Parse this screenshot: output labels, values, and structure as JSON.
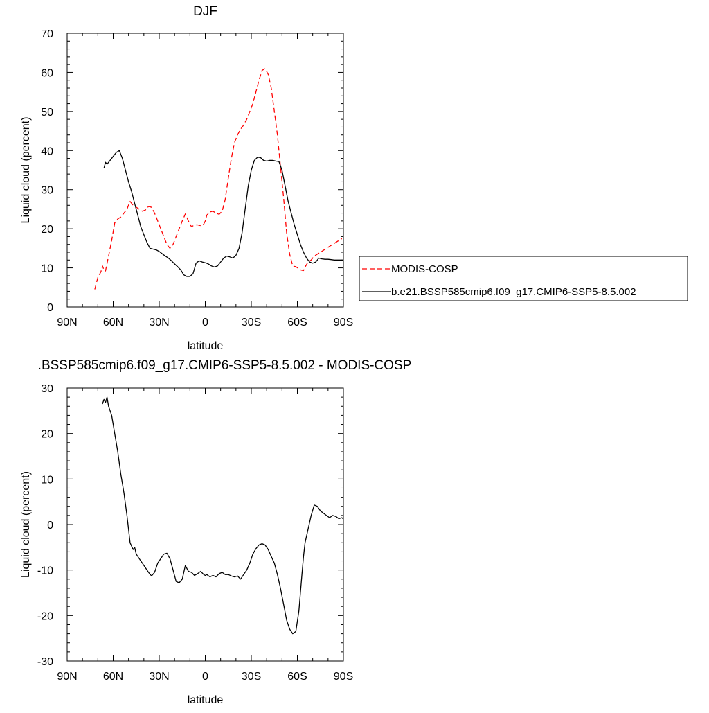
{
  "chart_data": [
    {
      "type": "line",
      "title": "DJF",
      "xlabel": "latitude",
      "ylabel": "Liquid cloud (percent)",
      "xlim": [
        -90,
        90
      ],
      "ylim": [
        0,
        70
      ],
      "x_ticks": [
        -90,
        -60,
        -30,
        0,
        30,
        60,
        90
      ],
      "x_tick_labels": [
        "90N",
        "60N",
        "30N",
        "0",
        "30S",
        "60S",
        "90S"
      ],
      "y_ticks": [
        0,
        10,
        20,
        30,
        40,
        50,
        60,
        70
      ],
      "y_tick_labels": [
        "0",
        "10",
        "20",
        "30",
        "40",
        "50",
        "60",
        "70"
      ],
      "legend_position": "right",
      "series": [
        {
          "name": "MODIS-COSP",
          "color": "#ff0000",
          "dash": "dashed",
          "x": [
            -72,
            -70,
            -68,
            -67,
            -66,
            -65,
            -63,
            -61,
            -59,
            -57,
            -55,
            -53,
            -51,
            -49,
            -47,
            -45,
            -43,
            -41,
            -39,
            -37,
            -35,
            -33,
            -31,
            -29,
            -27,
            -25,
            -23,
            -21,
            -19,
            -17,
            -15,
            -13,
            -11,
            -9,
            -7,
            -5,
            -3,
            -1,
            0,
            1,
            3,
            5,
            7,
            9,
            11,
            13,
            15,
            17,
            19,
            21,
            23,
            25,
            27,
            29,
            31,
            33,
            35,
            37,
            39,
            41,
            43,
            45,
            47,
            49,
            51,
            53,
            55,
            57,
            59,
            61,
            62,
            63,
            64,
            65,
            67,
            69,
            71,
            73,
            75,
            77,
            79,
            81,
            83,
            85,
            87,
            89
          ],
          "y": [
            4.5,
            7.5,
            9,
            10.5,
            9.5,
            9.2,
            13,
            17,
            21.5,
            22.5,
            23,
            24,
            25,
            27,
            26,
            25.5,
            25,
            24.5,
            24.8,
            25.7,
            25.5,
            24,
            22,
            20,
            18,
            16,
            15,
            16,
            18,
            20,
            22,
            23.8,
            22,
            20.5,
            21,
            21,
            20.8,
            21.2,
            22,
            23.5,
            24.3,
            24.5,
            24,
            23.7,
            24.5,
            27.5,
            33,
            38,
            42,
            44,
            45.5,
            46.5,
            48,
            50,
            52,
            55,
            58,
            60.5,
            61,
            59.5,
            56,
            50,
            44,
            36,
            28,
            19,
            13.5,
            10.5,
            10.3,
            9.8,
            9.5,
            9.4,
            9.3,
            10.2,
            11.5,
            12,
            13,
            13.5,
            14,
            14.5,
            15,
            15.5,
            16,
            16.5,
            17,
            17.5
          ],
          "x_note": ""
        },
        {
          "name": "b.e21.BSSP585cmip6.f09_g17.CMIP6-SSP5-8.5.002",
          "color": "#000000",
          "dash": "solid",
          "x": [
            -66,
            -65,
            -64,
            -62,
            -60,
            -58,
            -56,
            -54,
            -52,
            -50,
            -48,
            -46,
            -44,
            -42,
            -40,
            -38,
            -36,
            -34,
            -32,
            -30,
            -28,
            -26,
            -24,
            -22,
            -20,
            -18,
            -16,
            -14,
            -12,
            -10,
            -8,
            -6,
            -4,
            -2,
            0,
            2,
            4,
            6,
            8,
            10,
            12,
            14,
            16,
            18,
            20,
            22,
            24,
            26,
            28,
            30,
            32,
            34,
            36,
            38,
            40,
            42,
            44,
            46,
            48,
            50,
            52,
            54,
            56,
            58,
            60,
            62,
            64,
            66,
            68,
            70,
            72,
            74,
            76,
            78,
            80,
            82,
            84,
            86,
            88,
            90
          ],
          "y": [
            35.5,
            37,
            36.5,
            37.5,
            38.5,
            39.5,
            40,
            38,
            35,
            32,
            29.5,
            26.5,
            23.5,
            20.5,
            18.5,
            16.5,
            15,
            14.8,
            14.6,
            14.2,
            13.6,
            13,
            12.5,
            11.8,
            11,
            10.3,
            9.5,
            8.2,
            7.8,
            7.8,
            8.5,
            11.2,
            11.8,
            11.5,
            11.3,
            11,
            10.5,
            10.2,
            10.5,
            11.5,
            12.5,
            13,
            12.8,
            12.5,
            13.2,
            15,
            19,
            25,
            31,
            35,
            37.5,
            38.3,
            38.2,
            37.5,
            37.3,
            37.5,
            37.5,
            37.3,
            37.2,
            35,
            31,
            27,
            24,
            21,
            18.5,
            16,
            14,
            12.5,
            11.5,
            11.2,
            11.5,
            12.5,
            12.3,
            12.2,
            12.2,
            12.1,
            12,
            12,
            12,
            12
          ],
          "x_note": ""
        }
      ]
    },
    {
      "type": "line",
      "title": ".BSSP585cmip6.f09_g17.CMIP6-SSP5-8.5.002 - MODIS-COSP",
      "xlabel": "latitude",
      "ylabel": "Liquid cloud (percent)",
      "xlim": [
        -90,
        90
      ],
      "ylim": [
        -30,
        30
      ],
      "x_ticks": [
        -90,
        -60,
        -30,
        0,
        30,
        60,
        90
      ],
      "x_tick_labels": [
        "90N",
        "60N",
        "30N",
        "0",
        "30S",
        "60S",
        "90S"
      ],
      "y_ticks": [
        -30,
        -20,
        -10,
        0,
        10,
        20,
        30
      ],
      "y_tick_labels": [
        "-30",
        "-20",
        "-10",
        "0",
        "10",
        "20",
        "30"
      ],
      "series": [
        {
          "color": "#000000",
          "dash": "solid",
          "x": [
            -67,
            -66,
            -65,
            -64,
            -63,
            -62,
            -61,
            -60,
            -59,
            -57,
            -55,
            -53,
            -51,
            -49,
            -47,
            -46,
            -45,
            -43,
            -41,
            -39,
            -37,
            -35,
            -33,
            -31,
            -29,
            -27,
            -25,
            -23,
            -21,
            -19,
            -17,
            -15,
            -13,
            -11,
            -9,
            -7,
            -5,
            -3,
            -1,
            0,
            1,
            3,
            5,
            7,
            9,
            11,
            13,
            15,
            17,
            19,
            21,
            23,
            25,
            27,
            29,
            31,
            33,
            35,
            37,
            39,
            41,
            43,
            45,
            47,
            49,
            51,
            53,
            55,
            57,
            59,
            61,
            62,
            63,
            64,
            65,
            67,
            69,
            71,
            73,
            75,
            77,
            79,
            81,
            83,
            85,
            87,
            89,
            90
          ],
          "y": [
            26.5,
            27.5,
            26.8,
            28,
            26,
            25,
            24,
            22,
            20,
            16,
            11,
            7,
            2,
            -4,
            -5.5,
            -5,
            -6.5,
            -7.5,
            -8.5,
            -9.5,
            -10.5,
            -11.3,
            -10.5,
            -8.5,
            -7.5,
            -6.5,
            -6.3,
            -7.5,
            -10,
            -12.5,
            -12.8,
            -12,
            -9,
            -10.3,
            -10.5,
            -11.2,
            -10.8,
            -10.3,
            -11,
            -11.2,
            -11,
            -11.5,
            -11.2,
            -11.5,
            -10.8,
            -10.5,
            -11,
            -11,
            -11.3,
            -11.5,
            -11.3,
            -12,
            -11,
            -10,
            -8.5,
            -6.5,
            -5.3,
            -4.5,
            -4.2,
            -4.5,
            -5.5,
            -7,
            -8.5,
            -11,
            -14,
            -17.5,
            -21,
            -23,
            -24,
            -23.5,
            -19,
            -15,
            -11,
            -7,
            -4,
            -1,
            2,
            4.3,
            4,
            3,
            2.5,
            2,
            1.5,
            2,
            1.8,
            1.3,
            1.5,
            1.2
          ]
        }
      ]
    }
  ]
}
